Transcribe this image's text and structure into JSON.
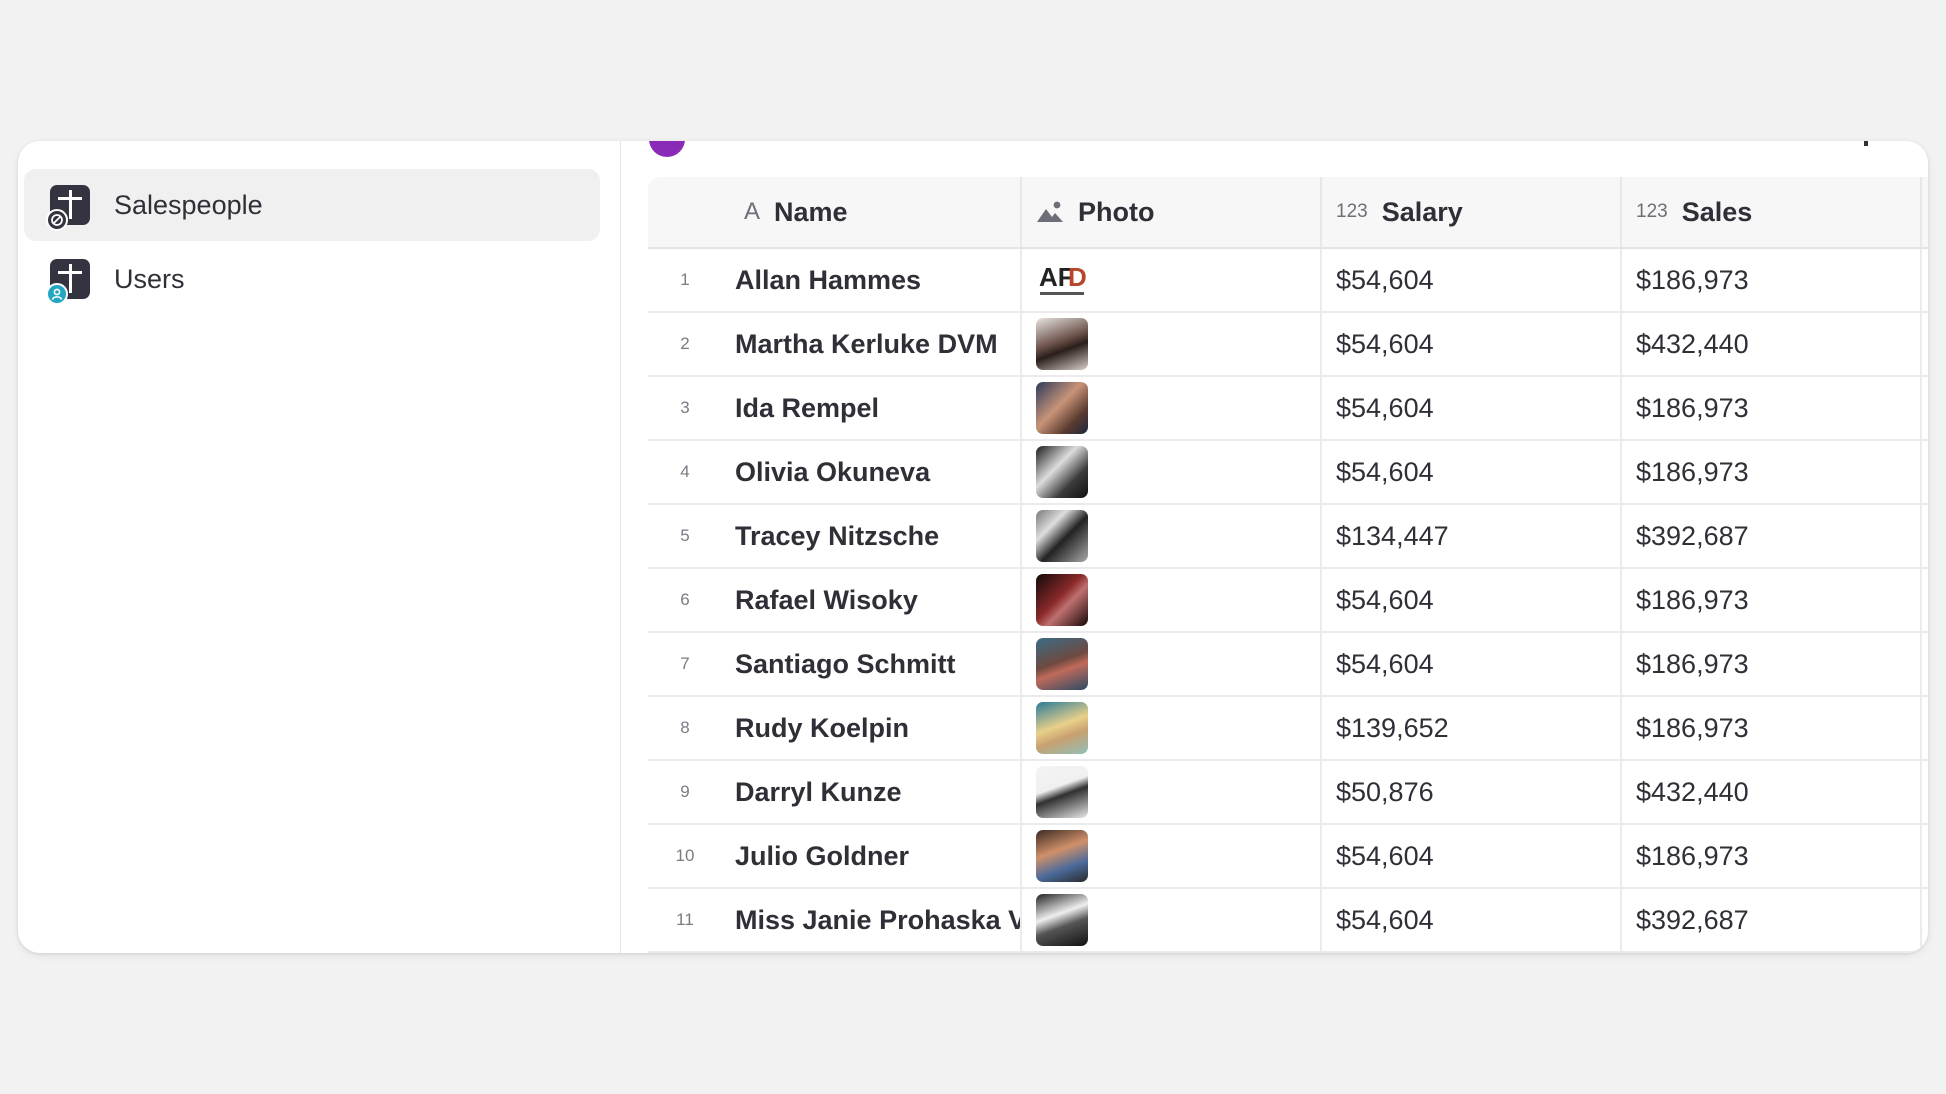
{
  "sidebar": {
    "items": [
      {
        "label": "Salespeople",
        "icon": "table-icon",
        "active": true
      },
      {
        "label": "Users",
        "icon": "table-user-icon",
        "active": false
      }
    ]
  },
  "grid": {
    "columns": [
      {
        "label": "Name",
        "type_icon": "text-type-icon",
        "type_glyph": "A"
      },
      {
        "label": "Photo",
        "type_icon": "image-type-icon"
      },
      {
        "label": "Salary",
        "type_icon": "number-type-icon",
        "type_glyph": "123"
      },
      {
        "label": "Sales",
        "type_icon": "number-type-icon",
        "type_glyph": "123"
      }
    ],
    "rows": [
      {
        "num": "1",
        "name": "Allan Hammes",
        "photo": "AFD logo",
        "salary": "$54,604",
        "sales": "$186,973"
      },
      {
        "num": "2",
        "name": "Martha Kerluke DVM",
        "photo": "portrait",
        "salary": "$54,604",
        "sales": "$432,440"
      },
      {
        "num": "3",
        "name": "Ida Rempel",
        "photo": "portrait",
        "salary": "$54,604",
        "sales": "$186,973"
      },
      {
        "num": "4",
        "name": "Olivia Okuneva",
        "photo": "portrait",
        "salary": "$54,604",
        "sales": "$186,973"
      },
      {
        "num": "5",
        "name": "Tracey Nitzsche",
        "photo": "portrait",
        "salary": "$134,447",
        "sales": "$392,687"
      },
      {
        "num": "6",
        "name": "Rafael Wisoky",
        "photo": "portrait",
        "salary": "$54,604",
        "sales": "$186,973"
      },
      {
        "num": "7",
        "name": "Santiago Schmitt",
        "photo": "portrait",
        "salary": "$54,604",
        "sales": "$186,973"
      },
      {
        "num": "8",
        "name": "Rudy Koelpin",
        "photo": "portrait",
        "salary": "$139,652",
        "sales": "$186,973"
      },
      {
        "num": "9",
        "name": "Darryl Kunze",
        "photo": "portrait",
        "salary": "$50,876",
        "sales": "$432,440"
      },
      {
        "num": "10",
        "name": "Julio Goldner",
        "photo": "portrait",
        "salary": "$54,604",
        "sales": "$186,973"
      },
      {
        "num": "11",
        "name": "Miss Janie Prohaska V",
        "photo": "portrait",
        "salary": "$54,604",
        "sales": "$392,687"
      }
    ]
  },
  "colors": {
    "accent_avatar": "#8a2bb8",
    "users_badge": "#22a6c2",
    "table_icon": "#33343f"
  }
}
